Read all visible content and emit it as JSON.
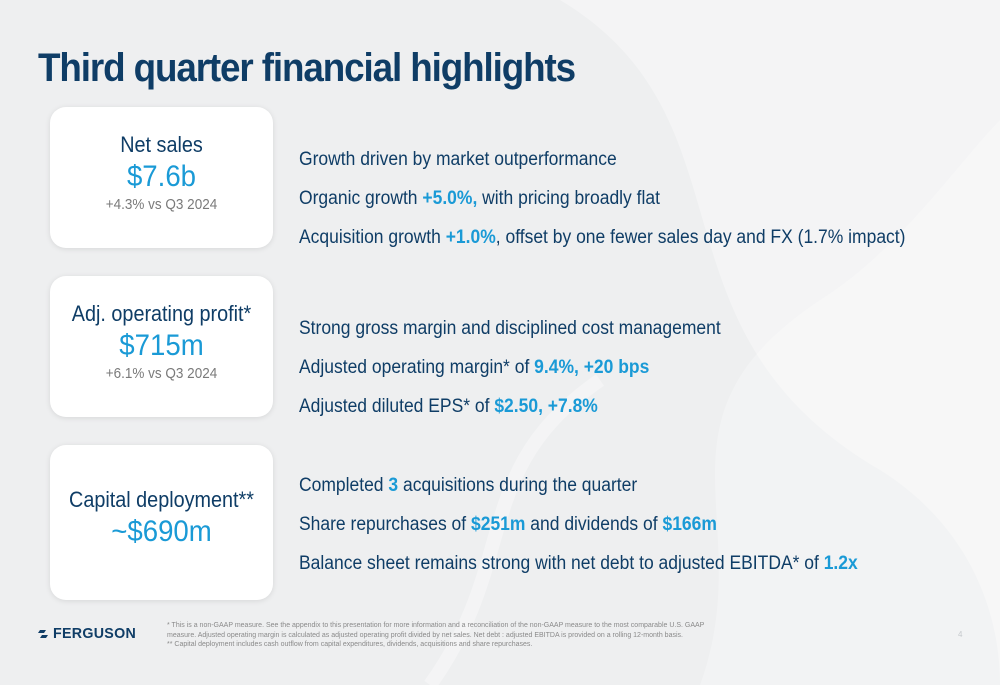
{
  "title": "Third quarter financial highlights",
  "colors": {
    "navy": "#0f3d66",
    "accent": "#1a9ad6",
    "background": "#eeeff0",
    "card": "#ffffff"
  },
  "cards": [
    {
      "label": "Net sales",
      "value": "$7.6b",
      "sub": "+4.3% vs Q3 2024"
    },
    {
      "label": "Adj. operating profit*",
      "value": "$715m",
      "sub": "+6.1% vs Q3 2024"
    },
    {
      "label": "Capital deployment**",
      "value": "~$690m"
    }
  ],
  "sections": [
    {
      "bullets": [
        {
          "parts": [
            {
              "t": "Growth driven by market outperformance"
            }
          ]
        },
        {
          "parts": [
            {
              "t": "Organic growth "
            },
            {
              "t": "+5.0%,",
              "hl": true
            },
            {
              "t": " with pricing broadly flat"
            }
          ]
        },
        {
          "parts": [
            {
              "t": "Acquisition growth "
            },
            {
              "t": "+1.0%",
              "hl": true
            },
            {
              "t": ", offset by one fewer sales day and FX (1.7% impact)"
            }
          ]
        }
      ]
    },
    {
      "bullets": [
        {
          "parts": [
            {
              "t": "Strong gross margin and disciplined cost management"
            }
          ]
        },
        {
          "parts": [
            {
              "t": "Adjusted operating margin* of "
            },
            {
              "t": "9.4%, +20 bps",
              "hl": true
            }
          ]
        },
        {
          "parts": [
            {
              "t": "Adjusted diluted EPS* of "
            },
            {
              "t": "$2.50, +7.8%",
              "hl": true
            }
          ]
        }
      ]
    },
    {
      "bullets": [
        {
          "parts": [
            {
              "t": "Completed "
            },
            {
              "t": "3",
              "hl": true
            },
            {
              "t": " acquisitions during the quarter"
            }
          ]
        },
        {
          "parts": [
            {
              "t": "Share repurchases of "
            },
            {
              "t": "$251m",
              "hl": true
            },
            {
              "t": " and dividends of "
            },
            {
              "t": "$166m",
              "hl": true
            }
          ]
        },
        {
          "parts": [
            {
              "t": "Balance sheet remains strong with net debt to adjusted EBITDA* of "
            },
            {
              "t": "1.2x",
              "hl": true
            }
          ]
        }
      ]
    }
  ],
  "logo": {
    "text": "FERGUSON",
    "icon": "ferguson-logo-mark-icon"
  },
  "footnotes": [
    "* This is a non-GAAP measure. See the appendix to this presentation for more information and a reconciliation of the non-GAAP measure to the most comparable U.S. GAAP",
    "measure. Adjusted operating margin is calculated as adjusted operating profit divided by net sales. Net debt : adjusted EBITDA is provided on a rolling 12-month basis.",
    "** Capital deployment includes cash outflow from capital expenditures, dividends, acquisitions and share repurchases."
  ],
  "page_number": "4"
}
